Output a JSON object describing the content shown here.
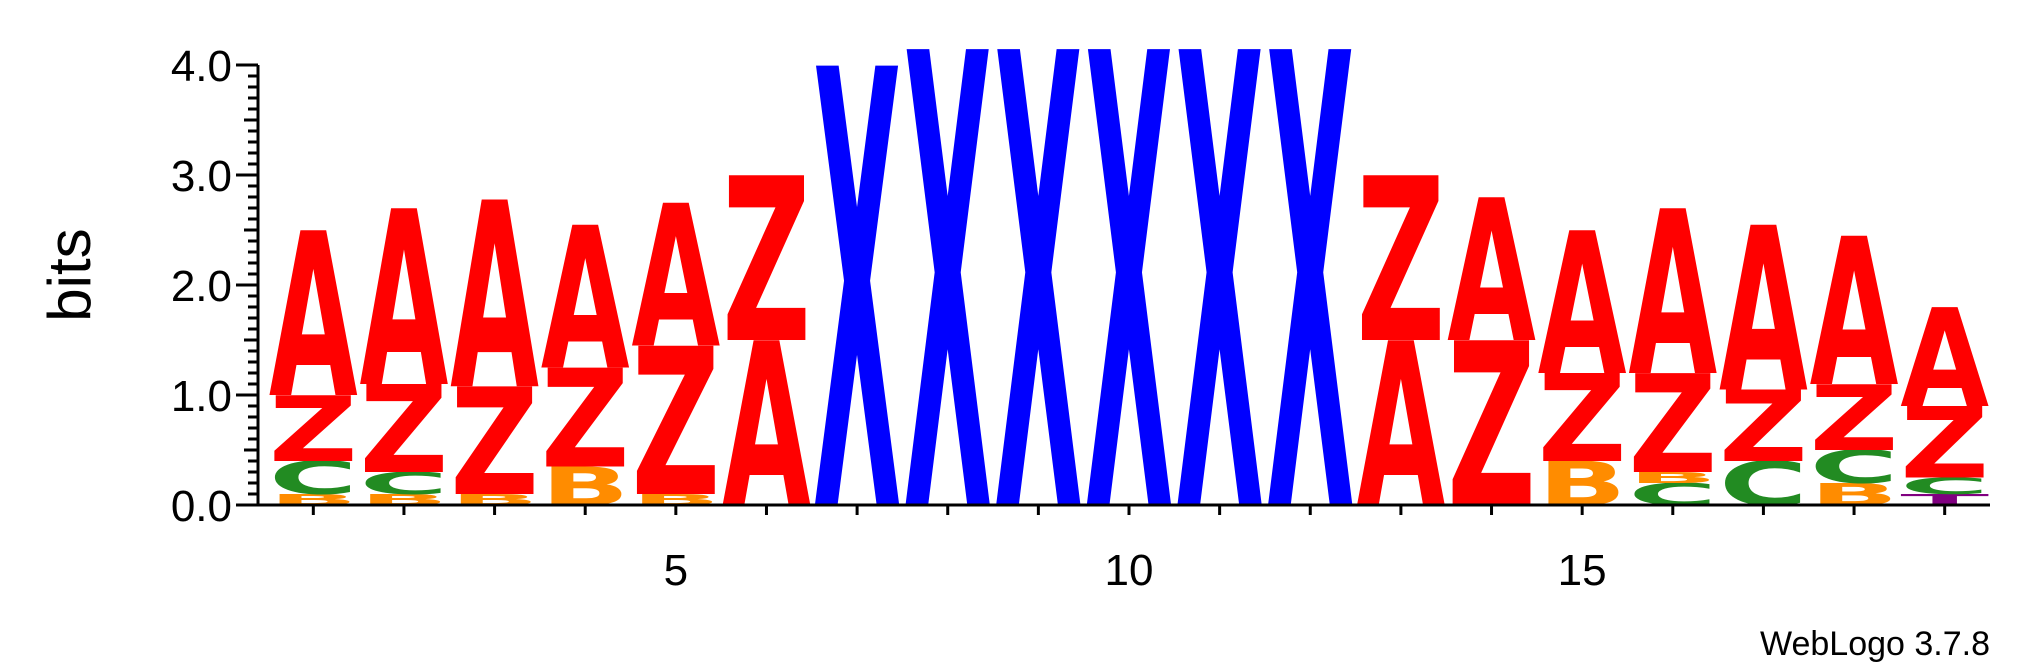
{
  "chart_data": {
    "type": "sequence-logo",
    "ylabel": "bits",
    "ylim": [
      0,
      4
    ],
    "yticks": [
      "0.0",
      "1.0",
      "2.0",
      "3.0",
      "4.0"
    ],
    "xticks": [
      5,
      10,
      15
    ],
    "credit": "WebLogo 3.7.8",
    "colors": {
      "A": "#ff0000",
      "Z": "#ff0000",
      "X": "#0000ff",
      "C": "#228b22",
      "B": "#ff8c00",
      "T": "#800080"
    },
    "positions": [
      {
        "pos": 1,
        "stack": [
          [
            "B",
            0.1
          ],
          [
            "C",
            0.3
          ],
          [
            "Z",
            0.6
          ],
          [
            "A",
            1.5
          ]
        ]
      },
      {
        "pos": 2,
        "stack": [
          [
            "B",
            0.1
          ],
          [
            "C",
            0.2
          ],
          [
            "Z",
            0.8
          ],
          [
            "A",
            1.6
          ]
        ]
      },
      {
        "pos": 3,
        "stack": [
          [
            "B",
            0.1
          ],
          [
            "Z",
            0.98
          ],
          [
            "A",
            1.7
          ]
        ]
      },
      {
        "pos": 4,
        "stack": [
          [
            "B",
            0.35
          ],
          [
            "Z",
            0.9
          ],
          [
            "A",
            1.3
          ]
        ]
      },
      {
        "pos": 5,
        "stack": [
          [
            "B",
            0.1
          ],
          [
            "Z",
            1.35
          ],
          [
            "A",
            1.3
          ]
        ]
      },
      {
        "pos": 6,
        "stack": [
          [
            "A",
            1.5
          ],
          [
            "Z",
            1.5
          ]
        ]
      },
      {
        "pos": 7,
        "stack": [
          [
            "X",
            4.0
          ]
        ]
      },
      {
        "pos": 8,
        "stack": [
          [
            "X",
            4.15
          ]
        ]
      },
      {
        "pos": 9,
        "stack": [
          [
            "X",
            4.15
          ]
        ]
      },
      {
        "pos": 10,
        "stack": [
          [
            "X",
            4.15
          ]
        ]
      },
      {
        "pos": 11,
        "stack": [
          [
            "X",
            4.15
          ]
        ]
      },
      {
        "pos": 12,
        "stack": [
          [
            "X",
            4.15
          ]
        ]
      },
      {
        "pos": 13,
        "stack": [
          [
            "A",
            1.5
          ],
          [
            "Z",
            1.5
          ]
        ]
      },
      {
        "pos": 14,
        "stack": [
          [
            "Z",
            1.5
          ],
          [
            "A",
            1.3
          ]
        ]
      },
      {
        "pos": 15,
        "stack": [
          [
            "B",
            0.4
          ],
          [
            "Z",
            0.8
          ],
          [
            "A",
            1.3
          ]
        ]
      },
      {
        "pos": 16,
        "stack": [
          [
            "C",
            0.2
          ],
          [
            "B",
            0.1
          ],
          [
            "Z",
            0.9
          ],
          [
            "A",
            1.5
          ]
        ]
      },
      {
        "pos": 17,
        "stack": [
          [
            "C",
            0.4
          ],
          [
            "Z",
            0.65
          ],
          [
            "A",
            1.5
          ]
        ]
      },
      {
        "pos": 18,
        "stack": [
          [
            "B",
            0.2
          ],
          [
            "C",
            0.3
          ],
          [
            "Z",
            0.6
          ],
          [
            "A",
            1.35
          ]
        ]
      },
      {
        "pos": 19,
        "stack": [
          [
            "T",
            0.1
          ],
          [
            "C",
            0.15
          ],
          [
            "Z",
            0.65
          ],
          [
            "A",
            0.9
          ]
        ]
      }
    ]
  }
}
